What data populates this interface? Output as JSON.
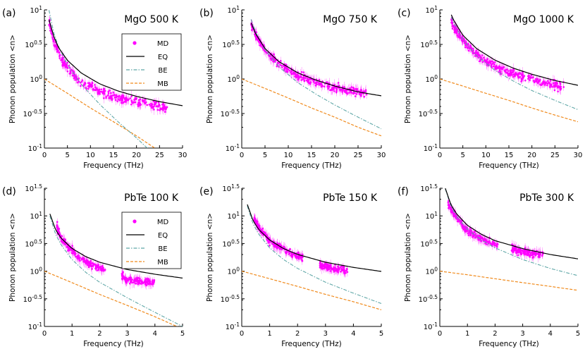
{
  "colors": {
    "md": "#ff00ff",
    "eq": "#000000",
    "be": "#5fa7a7",
    "mb": "#f08a1c"
  },
  "chart_data": [
    {
      "id": "a",
      "type": "scatter",
      "panel_label": "(a)",
      "title": "MgO 500 K",
      "material": "MgO",
      "temperature_K": 500,
      "xlabel": "Frequency (THz)",
      "ylabel": "Phonon population <n>",
      "xlim": [
        0,
        30
      ],
      "ylim_log10": [
        -1,
        1
      ],
      "xticks": [
        0,
        5,
        10,
        15,
        20,
        25,
        30
      ],
      "yticks": [
        {
          "exp": 1,
          "label": "10^1"
        },
        {
          "exp": 0.5,
          "label": "10^0.5"
        },
        {
          "exp": 0,
          "label": "10^0"
        },
        {
          "exp": -0.5,
          "label": "10^-0.5"
        },
        {
          "exp": -1,
          "label": "10^-1"
        }
      ],
      "legend": {
        "position": "top-right",
        "entries": [
          "MD",
          "EQ",
          "BE",
          "MB"
        ]
      },
      "md_range_x": [
        1,
        27
      ],
      "eq_shift_units_of_T": 0.5,
      "series": [
        {
          "name": "MD",
          "style": "points",
          "x": [
            1.2,
            2,
            3,
            4,
            5,
            7,
            9,
            11,
            13,
            15,
            17,
            19,
            21,
            23,
            25,
            27
          ],
          "y": [
            5.9,
            3.65,
            2.4,
            1.8,
            1.43,
            1.03,
            0.83,
            0.71,
            0.62,
            0.55,
            0.52,
            0.48,
            0.45,
            0.43,
            0.41,
            0.38
          ]
        },
        {
          "name": "EQ",
          "style": "line",
          "x": [
            1,
            2,
            3,
            5,
            8,
            12,
            16,
            20,
            25,
            30
          ],
          "y": [
            7.2,
            4.2,
            2.9,
            1.86,
            1.22,
            0.85,
            0.67,
            0.56,
            0.47,
            0.41
          ]
        },
        {
          "name": "BE",
          "style": "dashdot",
          "x": [
            1,
            2,
            3,
            5,
            8,
            12,
            16,
            20,
            25,
            30
          ],
          "y": [
            9.9,
            4.73,
            3.01,
            1.62,
            0.84,
            0.43,
            0.24,
            0.14,
            0.068,
            0.034
          ]
        },
        {
          "name": "MB",
          "style": "dashed",
          "x": [
            0,
            5,
            10,
            15,
            20,
            25,
            30
          ],
          "y": [
            1.0,
            0.62,
            0.38,
            0.24,
            0.15,
            0.09,
            0.056
          ]
        }
      ]
    },
    {
      "id": "b",
      "type": "scatter",
      "panel_label": "(b)",
      "title": "MgO 750 K",
      "material": "MgO",
      "temperature_K": 750,
      "xlabel": "Frequency (THz)",
      "ylabel": "Phonon population <n>",
      "xlim": [
        0,
        30
      ],
      "ylim_log10": [
        -1,
        1
      ],
      "xticks": [
        0,
        5,
        10,
        15,
        20,
        25,
        30
      ],
      "yticks": [
        {
          "exp": 1,
          "label": "10^1"
        },
        {
          "exp": 0.5,
          "label": "10^0.5"
        },
        {
          "exp": 0,
          "label": "10^0"
        },
        {
          "exp": -0.5,
          "label": "10^-0.5"
        },
        {
          "exp": -1,
          "label": "10^-1"
        }
      ],
      "legend": null,
      "md_range_x": [
        2,
        27
      ],
      "eq_shift_units_of_T": 0.5,
      "series": [
        {
          "name": "MD",
          "style": "points",
          "x": [
            2,
            3,
            5,
            8,
            11,
            14,
            17,
            20,
            23,
            27
          ],
          "y": [
            6.3,
            4.3,
            2.6,
            1.65,
            1.2,
            0.98,
            0.85,
            0.75,
            0.68,
            0.6
          ]
        },
        {
          "name": "EQ",
          "style": "line",
          "x": [
            2,
            3,
            5,
            8,
            12,
            16,
            20,
            25,
            30
          ],
          "y": [
            6.5,
            4.5,
            2.75,
            1.78,
            1.23,
            0.96,
            0.79,
            0.65,
            0.57
          ]
        },
        {
          "name": "BE",
          "style": "dashdot",
          "x": [
            2,
            3,
            5,
            8,
            12,
            16,
            20,
            25,
            30
          ],
          "y": [
            7.3,
            4.73,
            2.64,
            1.5,
            0.89,
            0.6,
            0.42,
            0.28,
            0.19
          ]
        },
        {
          "name": "MB",
          "style": "dashed",
          "x": [
            0,
            5,
            10,
            15,
            20,
            25,
            30
          ],
          "y": [
            1.0,
            0.73,
            0.53,
            0.38,
            0.28,
            0.2,
            0.15
          ]
        }
      ]
    },
    {
      "id": "c",
      "type": "scatter",
      "panel_label": "(c)",
      "title": "MgO 1000 K",
      "material": "MgO",
      "temperature_K": 1000,
      "xlabel": "Frequency (THz)",
      "ylabel": "Phonon population <n>",
      "xlim": [
        0,
        30
      ],
      "ylim_log10": [
        -1,
        1
      ],
      "xticks": [
        0,
        5,
        10,
        15,
        20,
        25,
        30
      ],
      "yticks": [
        {
          "exp": 1,
          "label": "10^1"
        },
        {
          "exp": 0.5,
          "label": "10^0.5"
        },
        {
          "exp": 0,
          "label": "10^0"
        },
        {
          "exp": -0.5,
          "label": "10^-0.5"
        },
        {
          "exp": -1,
          "label": "10^-1"
        }
      ],
      "legend": null,
      "md_range_x": [
        2.5,
        27
      ],
      "eq_shift_units_of_T": 0.5,
      "series": [
        {
          "name": "MD",
          "style": "points",
          "x": [
            3,
            4,
            6,
            9,
            12,
            15,
            18,
            21,
            24,
            27
          ],
          "y": [
            5.9,
            4.5,
            3.0,
            2.0,
            1.55,
            1.25,
            1.08,
            0.95,
            0.85,
            0.76
          ]
        },
        {
          "name": "EQ",
          "style": "line",
          "x": [
            2.5,
            3,
            5,
            8,
            12,
            16,
            20,
            25,
            30
          ],
          "y": [
            8.5,
            7.1,
            4.3,
            2.75,
            1.87,
            1.43,
            1.17,
            0.95,
            0.81
          ]
        },
        {
          "name": "BE",
          "style": "dashdot",
          "x": [
            2.5,
            3,
            5,
            8,
            12,
            16,
            20,
            25,
            30
          ],
          "y": [
            7.87,
            6.46,
            3.69,
            2.17,
            1.33,
            0.93,
            0.68,
            0.49,
            0.36
          ]
        },
        {
          "name": "MB",
          "style": "dashed",
          "x": [
            0,
            5,
            10,
            15,
            20,
            25,
            30
          ],
          "y": [
            1.0,
            0.79,
            0.62,
            0.49,
            0.38,
            0.3,
            0.24
          ]
        }
      ]
    },
    {
      "id": "d",
      "type": "scatter",
      "panel_label": "(d)",
      "title": "PbTe 100 K",
      "material": "PbTe",
      "temperature_K": 100,
      "xlabel": "Frequency (THz)",
      "ylabel": "Phonon population <n>",
      "xlim": [
        0,
        5
      ],
      "ylim_log10": [
        -1,
        1.5
      ],
      "xticks": [
        0,
        1,
        2,
        3,
        4,
        5
      ],
      "yticks": [
        {
          "exp": 1.5,
          "label": "10^1.5"
        },
        {
          "exp": 1,
          "label": "10^1"
        },
        {
          "exp": 0.5,
          "label": "10^0.5"
        },
        {
          "exp": 0,
          "label": "10^0"
        },
        {
          "exp": -0.5,
          "label": "10^-0.5"
        },
        {
          "exp": -1,
          "label": "10^-1"
        }
      ],
      "legend": {
        "position": "top-right",
        "entries": [
          "MD",
          "EQ",
          "BE",
          "MB"
        ]
      },
      "md_range_x": [
        0.45,
        2.2,
        2.8,
        4
      ],
      "eq_shift_units_of_T": 0.5,
      "series": [
        {
          "name": "MD",
          "style": "points",
          "x": [
            0.45,
            0.6,
            0.8,
            1.0,
            1.3,
            1.6,
            1.9,
            2.2,
            2.9,
            3.2,
            3.5,
            3.8,
            4.0
          ],
          "y": [
            6.5,
            4.0,
            3.0,
            2.3,
            1.7,
            1.4,
            1.2,
            1.05,
            0.74,
            0.7,
            0.66,
            0.62,
            0.6
          ]
        },
        {
          "name": "EQ",
          "style": "line",
          "x": [
            0.2,
            0.4,
            0.6,
            1.0,
            1.5,
            2.0,
            3.0,
            4.0,
            5.0
          ],
          "y": [
            10.9,
            5.7,
            3.97,
            2.58,
            1.83,
            1.45,
            1.07,
            0.88,
            0.75
          ]
        },
        {
          "name": "BE",
          "style": "dashdot",
          "x": [
            0.2,
            0.4,
            0.6,
            1.0,
            1.5,
            2.0,
            3.0,
            4.0,
            5.0
          ],
          "y": [
            9.9,
            4.73,
            3.01,
            1.62,
            0.95,
            0.63,
            0.33,
            0.18,
            0.1
          ]
        },
        {
          "name": "MB",
          "style": "dashed",
          "x": [
            0,
            1,
            2,
            3,
            4,
            5
          ],
          "y": [
            1.0,
            0.62,
            0.38,
            0.24,
            0.15,
            0.09
          ]
        }
      ]
    },
    {
      "id": "e",
      "type": "scatter",
      "panel_label": "(e)",
      "title": "PbTe 150 K",
      "material": "PbTe",
      "temperature_K": 150,
      "xlabel": "Frequency (THz)",
      "ylabel": "Phonon population <n>",
      "xlim": [
        0,
        5
      ],
      "ylim_log10": [
        -1,
        1.5
      ],
      "xticks": [
        0,
        1,
        2,
        3,
        4,
        5
      ],
      "yticks": [
        {
          "exp": 1.5,
          "label": "10^1.5"
        },
        {
          "exp": 1,
          "label": "10^1"
        },
        {
          "exp": 0.5,
          "label": "10^0.5"
        },
        {
          "exp": 0,
          "label": "10^0"
        },
        {
          "exp": -0.5,
          "label": "10^-0.5"
        },
        {
          "exp": -1,
          "label": "10^-1"
        }
      ],
      "legend": null,
      "md_range_x": [
        0.45,
        2.2,
        2.8,
        3.8
      ],
      "eq_shift_units_of_T": 0.5,
      "series": [
        {
          "name": "MD",
          "style": "points",
          "x": [
            0.45,
            0.7,
            1.0,
            1.3,
            1.6,
            1.9,
            2.2,
            2.9,
            3.2,
            3.5,
            3.8
          ],
          "y": [
            9.0,
            5.2,
            3.6,
            2.8,
            2.3,
            1.95,
            1.7,
            1.25,
            1.15,
            1.05,
            1.0
          ]
        },
        {
          "name": "EQ",
          "style": "line",
          "x": [
            0.2,
            0.4,
            0.6,
            1.0,
            1.5,
            2.0,
            3.0,
            4.0,
            5.0
          ],
          "y": [
            16.1,
            8.33,
            5.74,
            3.66,
            2.56,
            2.01,
            1.45,
            1.17,
            0.99
          ]
        },
        {
          "name": "BE",
          "style": "dashdot",
          "x": [
            0.2,
            0.4,
            0.6,
            1.0,
            1.5,
            2.0,
            3.0,
            4.0,
            5.0
          ],
          "y": [
            15.1,
            7.33,
            4.73,
            2.64,
            1.62,
            1.12,
            0.63,
            0.4,
            0.26
          ]
        },
        {
          "name": "MB",
          "style": "dashed",
          "x": [
            0,
            1,
            2,
            3,
            4,
            5
          ],
          "y": [
            1.0,
            0.73,
            0.53,
            0.38,
            0.28,
            0.2
          ]
        }
      ]
    },
    {
      "id": "f",
      "type": "scatter",
      "panel_label": "(f)",
      "title": "PbTe 300 K",
      "material": "PbTe",
      "temperature_K": 300,
      "xlabel": "Frequency (THz)",
      "ylabel": "Phonon population <n>",
      "xlim": [
        0,
        5
      ],
      "ylim_log10": [
        -1,
        1.5
      ],
      "xticks": [
        0,
        1,
        2,
        3,
        4,
        5
      ],
      "yticks": [
        {
          "exp": 1.5,
          "label": "10^1.5"
        },
        {
          "exp": 1,
          "label": "10^1"
        },
        {
          "exp": 0.5,
          "label": "10^0.5"
        },
        {
          "exp": 0,
          "label": "10^0"
        },
        {
          "exp": -0.5,
          "label": "10^-0.5"
        },
        {
          "exp": -1,
          "label": "10^-1"
        }
      ],
      "legend": null,
      "md_range_x": [
        0.3,
        2.1,
        2.6,
        3.75
      ],
      "eq_shift_units_of_T": 0.5,
      "series": [
        {
          "name": "MD",
          "style": "points",
          "x": [
            0.3,
            0.5,
            0.8,
            1.1,
            1.5,
            1.8,
            2.1,
            2.7,
            3.0,
            3.4,
            3.75
          ],
          "y": [
            16,
            11,
            7.0,
            5.0,
            3.8,
            3.3,
            3.0,
            2.4,
            2.25,
            2.1,
            2.0
          ]
        },
        {
          "name": "EQ",
          "style": "line",
          "x": [
            0.2,
            0.4,
            0.6,
            1.0,
            1.5,
            2.0,
            3.0,
            4.0,
            5.0
          ],
          "y": [
            31.5,
            16.1,
            11.0,
            6.75,
            4.66,
            3.56,
            2.56,
            2.0,
            1.67
          ]
        },
        {
          "name": "BE",
          "style": "dashdot",
          "x": [
            0.2,
            0.4,
            0.6,
            1.0,
            1.5,
            2.0,
            3.0,
            4.0,
            5.0
          ],
          "y": [
            30.8,
            15.1,
            9.9,
            5.73,
            3.69,
            2.64,
            1.62,
            1.12,
            0.83
          ]
        },
        {
          "name": "MB",
          "style": "dashed",
          "x": [
            0,
            1,
            2,
            3,
            4,
            5
          ],
          "y": [
            1.0,
            0.86,
            0.73,
            0.62,
            0.53,
            0.45
          ]
        }
      ]
    }
  ]
}
